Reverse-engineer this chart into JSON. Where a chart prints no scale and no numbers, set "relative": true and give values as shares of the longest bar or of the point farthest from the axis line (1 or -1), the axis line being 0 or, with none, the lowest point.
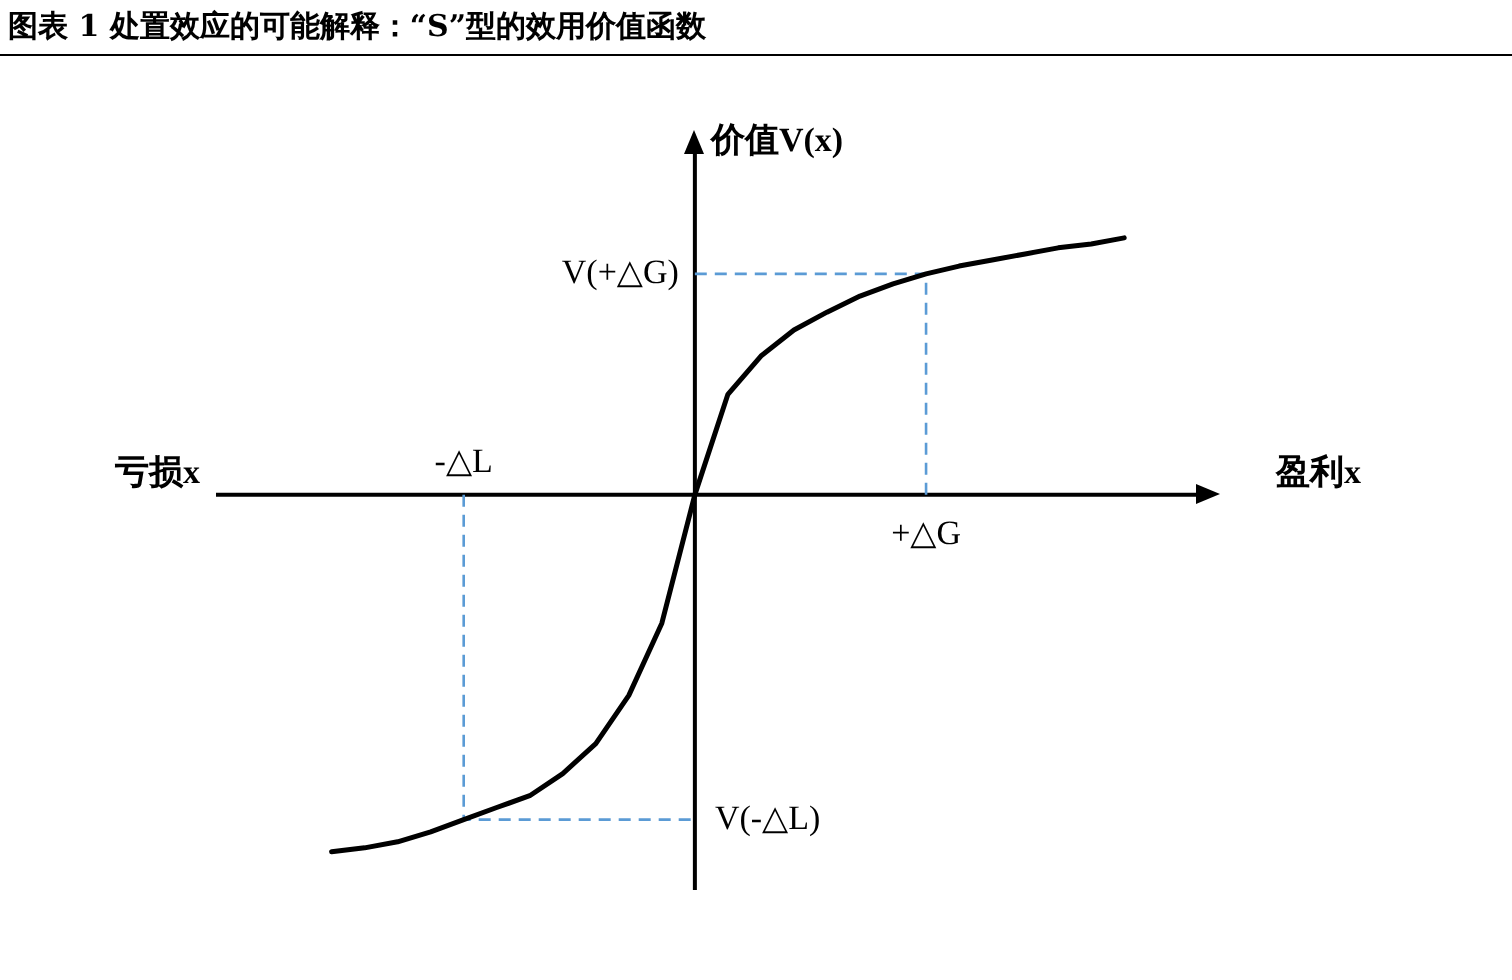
{
  "chart_data": {
    "type": "line",
    "title": "图表 1 处置效应的可能解释：“S”型的效用价值函数",
    "xlabel": "盈利x",
    "ylabel": "价值V(x)",
    "relative": true,
    "marker": "none",
    "categories": [
      null,
      null,
      null,
      null,
      null,
      null,
      null,
      null,
      null,
      null,
      null,
      null,
      null,
      null,
      null,
      null,
      null,
      null,
      null,
      null,
      null,
      null,
      null,
      null,
      null
    ],
    "series": [
      {
        "color": "#000000",
        "values": [
          -1,
          -0.989,
          -0.972,
          -0.944,
          -0.91,
          -0.876,
          -0.843,
          -0.781,
          -0.697,
          -0.562,
          -0.36,
          0,
          0.281,
          0.388,
          0.461,
          0.511,
          0.556,
          0.59,
          0.618,
          0.64,
          0.657,
          0.674,
          0.691,
          0.702,
          0.719
        ]
      }
    ],
    "ref_lines": [
      {
        "axis": "y",
        "value": 0.618,
        "label": "V(+△G)",
        "color": "#5b9bd5",
        "line_style": "dashed"
      },
      {
        "axis": "y",
        "value": -0.91,
        "label": "V(-△L)",
        "color": "#5b9bd5",
        "line_style": "dashed"
      }
    ],
    "annotations": [
      "亏损x",
      "+△G",
      "-△L"
    ]
  }
}
